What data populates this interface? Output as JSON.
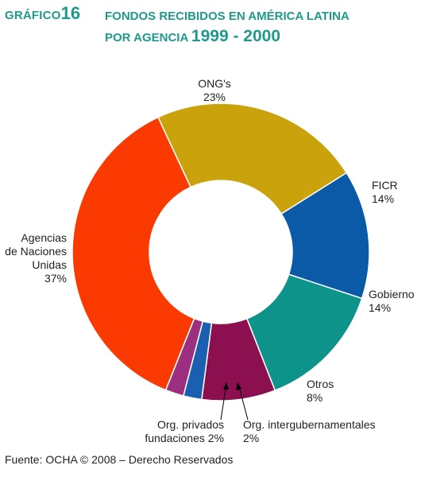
{
  "header": {
    "label": "GRÁFICO",
    "number": "16",
    "title_line1": "FONDOS RECIBIDOS EN AMÉRICA LATINA",
    "title_line2": "POR AGENCIA",
    "title_years": "1999 - 2000"
  },
  "chart_data": {
    "type": "pie",
    "donut": true,
    "slices": [
      {
        "name": "ONG's",
        "value": 23,
        "label": "23%",
        "color": "#c9a20c"
      },
      {
        "name": "FICR",
        "value": 14,
        "label": "14%",
        "color": "#0a5aa8"
      },
      {
        "name": "Gobierno",
        "value": 14,
        "label": "14%",
        "color": "#0e938a"
      },
      {
        "name": "Otros",
        "value": 8,
        "label": "8%",
        "color": "#8c1050"
      },
      {
        "name": "Org. intergubernamentales",
        "value": 2,
        "label": "2%",
        "color": "#1b5fb0"
      },
      {
        "name": "Org. privados fundaciones",
        "value": 2,
        "label": "2%",
        "color": "#9c2f80"
      },
      {
        "name": "Agencias de Naciones Unidas",
        "value": 37,
        "label": "37%",
        "color": "#fa3a00"
      }
    ]
  },
  "labels": {
    "ongs": {
      "name": "ONG's",
      "pct": "23%"
    },
    "ficr": {
      "name": "FICR",
      "pct": "14%"
    },
    "gobierno": {
      "name": "Gobierno",
      "pct": "14%"
    },
    "otros": {
      "name": "Otros",
      "pct": "8%"
    },
    "intergub": {
      "name": "Org. intergubernamentales",
      "pct": "2%"
    },
    "privados": {
      "name1": "Org. privados",
      "name2": "fundaciones 2%"
    },
    "onu": {
      "l1": "Agencias",
      "l2": "de Naciones",
      "l3": "Unidas",
      "pct": "37%"
    }
  },
  "footer": {
    "source": "Fuente: OCHA © 2008 – Derecho Reservados"
  }
}
